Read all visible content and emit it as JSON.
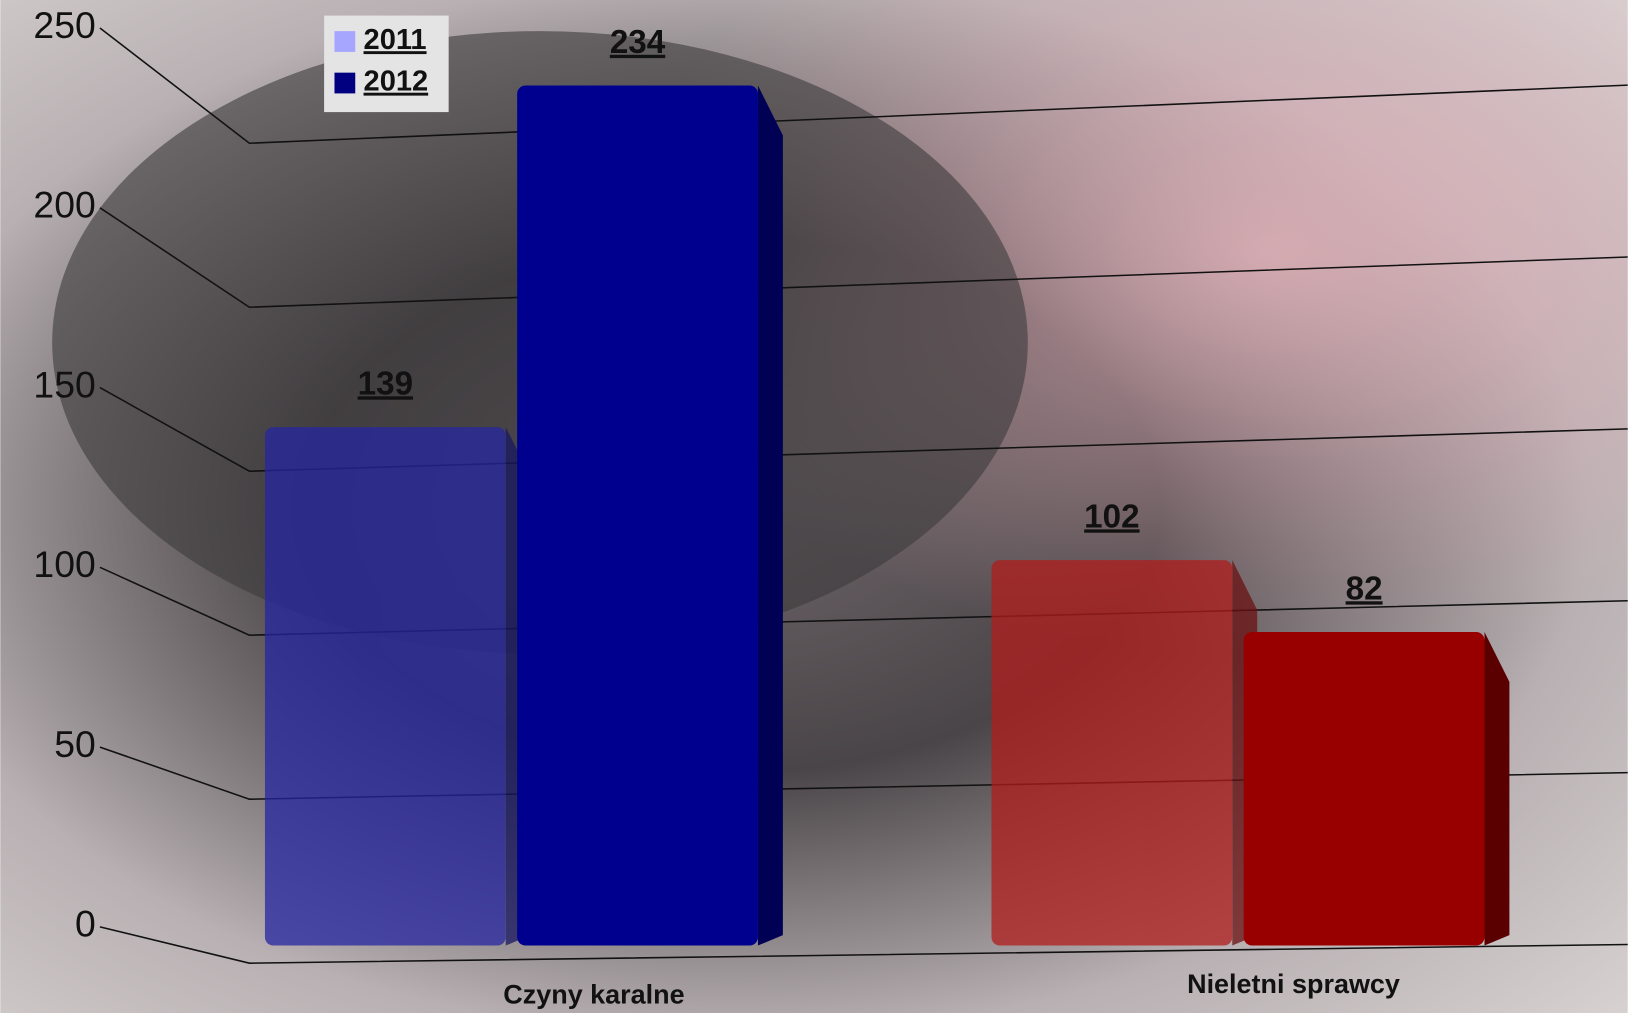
{
  "chart_data": {
    "type": "bar3d",
    "categories": [
      "Czyny karalne",
      "Nieletni sprawcy"
    ],
    "series": [
      {
        "name": "2011",
        "color": "#a6a6ff",
        "bar_colors": [
          "#2626a0",
          "#b01c1c"
        ],
        "opacity": 0.75,
        "values": [
          139,
          102
        ]
      },
      {
        "name": "2012",
        "color": "#000080",
        "bar_colors": [
          "#00008e",
          "#980000"
        ],
        "opacity": 1,
        "values": [
          234,
          82
        ]
      }
    ],
    "ylim": [
      0,
      250
    ],
    "yticks": [
      0,
      50,
      100,
      150,
      200,
      250
    ],
    "grid": true
  }
}
